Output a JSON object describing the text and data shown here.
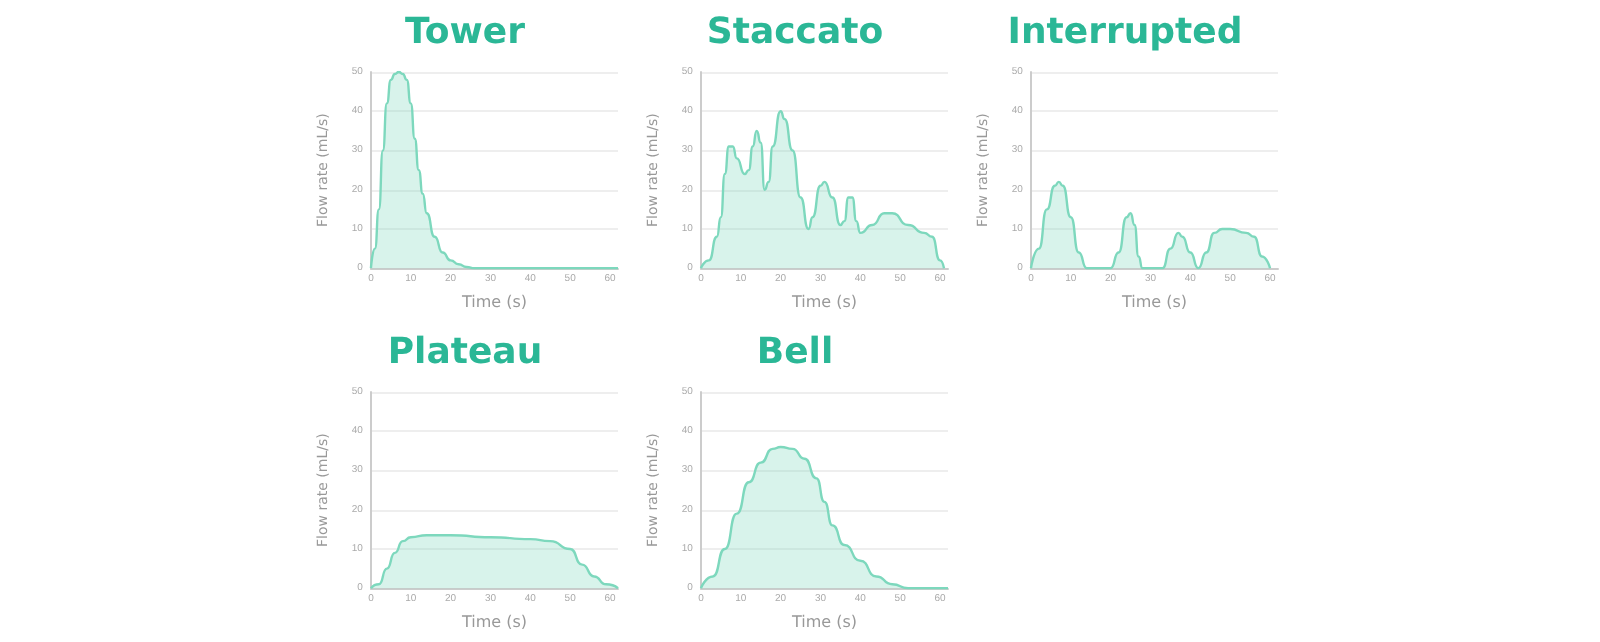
{
  "chart_data": [
    {
      "type": "area",
      "title": "Tower",
      "xlabel": "Time (s)",
      "ylabel": "Flow rate (mL/s)",
      "xlim": [
        0,
        62
      ],
      "xticks": [
        0,
        10,
        20,
        30,
        40,
        50,
        60
      ],
      "ylim": [
        0,
        50
      ],
      "yticks": [
        0,
        10,
        20,
        30,
        40,
        50
      ],
      "grid": "y",
      "series": [
        {
          "color": "#7dd8bd",
          "x": [
            0,
            1,
            2,
            3,
            4,
            5,
            6,
            7,
            8,
            9,
            10,
            11,
            12,
            13,
            14,
            16,
            18,
            20,
            22,
            24,
            26,
            62
          ],
          "values": [
            0,
            5,
            15,
            30,
            42,
            48,
            49.5,
            50,
            49.5,
            48,
            42,
            33,
            25,
            19,
            14,
            8,
            4,
            2,
            1,
            0.3,
            0,
            0
          ]
        }
      ]
    },
    {
      "type": "area",
      "title": "Staccato",
      "xlabel": "Time (s)",
      "ylabel": "Flow rate (mL/s)",
      "xlim": [
        0,
        62
      ],
      "xticks": [
        0,
        10,
        20,
        30,
        40,
        50,
        60
      ],
      "ylim": [
        0,
        50
      ],
      "yticks": [
        0,
        10,
        20,
        30,
        40,
        50
      ],
      "grid": "y",
      "series": [
        {
          "color": "#7dd8bd",
          "x": [
            0,
            2,
            4,
            5,
            6,
            7,
            8,
            9,
            11,
            12,
            13,
            14,
            15,
            16,
            17,
            18,
            20,
            21,
            23,
            25,
            27,
            28,
            30,
            31,
            33,
            35,
            36,
            37,
            38,
            39,
            40,
            43,
            46,
            48,
            52,
            56,
            58,
            60,
            61
          ],
          "values": [
            0,
            2,
            8,
            13,
            24,
            31,
            31,
            28,
            24,
            25,
            31,
            35,
            32,
            20,
            22,
            31,
            40,
            38,
            30,
            18,
            10,
            13,
            21,
            22,
            18,
            11,
            12,
            18,
            18,
            12,
            9,
            11,
            14,
            14,
            11,
            9,
            8,
            2,
            0
          ]
        }
      ]
    },
    {
      "type": "area",
      "title": "Interrupted",
      "xlabel": "Time (s)",
      "ylabel": "Flow rate (mL/s)",
      "xlim": [
        0,
        62
      ],
      "xticks": [
        0,
        10,
        20,
        30,
        40,
        50,
        60
      ],
      "ylim": [
        0,
        50
      ],
      "yticks": [
        0,
        10,
        20,
        30,
        40,
        50
      ],
      "grid": "y",
      "series": [
        {
          "color": "#7dd8bd",
          "x": [
            0,
            2,
            4,
            6,
            7,
            8,
            10,
            12,
            14,
            20,
            22,
            24,
            25,
            26,
            27,
            28,
            33,
            35,
            37,
            38,
            40,
            42,
            44,
            46,
            48,
            50,
            54,
            56,
            58,
            60
          ],
          "values": [
            0,
            5,
            15,
            21,
            22,
            21,
            13,
            4,
            0,
            0,
            4,
            13,
            14,
            11,
            3,
            0,
            0,
            5,
            9,
            8,
            4,
            0,
            4,
            9,
            10,
            10,
            9,
            8,
            3,
            0
          ]
        }
      ]
    },
    {
      "type": "area",
      "title": "Plateau",
      "xlabel": "Time (s)",
      "ylabel": "Flow rate (mL/s)",
      "xlim": [
        0,
        62
      ],
      "xticks": [
        0,
        10,
        20,
        30,
        40,
        50,
        60
      ],
      "ylim": [
        0,
        50
      ],
      "yticks": [
        0,
        10,
        20,
        30,
        40,
        50
      ],
      "grid": "y",
      "series": [
        {
          "color": "#7dd8bd",
          "x": [
            0,
            2,
            4,
            6,
            8,
            10,
            14,
            20,
            30,
            40,
            45,
            50,
            53,
            56,
            59,
            62
          ],
          "values": [
            0,
            1,
            5,
            9,
            12,
            13,
            13.5,
            13.5,
            13,
            12.5,
            12,
            10,
            6,
            3,
            1,
            0
          ]
        }
      ]
    },
    {
      "type": "area",
      "title": "Bell",
      "xlabel": "Time (s)",
      "ylabel": "Flow rate (mL/s)",
      "xlim": [
        0,
        62
      ],
      "xticks": [
        0,
        10,
        20,
        30,
        40,
        50,
        60
      ],
      "ylim": [
        0,
        50
      ],
      "yticks": [
        0,
        10,
        20,
        30,
        40,
        50
      ],
      "grid": "y",
      "series": [
        {
          "color": "#7dd8bd",
          "x": [
            0,
            3,
            6,
            9,
            12,
            15,
            18,
            20,
            23,
            26,
            29,
            31,
            33,
            36,
            40,
            44,
            48,
            52,
            62
          ],
          "values": [
            0,
            3,
            10,
            19,
            27,
            32,
            35.5,
            36,
            35.5,
            33,
            28,
            22,
            16,
            11,
            7,
            3,
            1,
            0,
            0
          ]
        }
      ]
    }
  ]
}
